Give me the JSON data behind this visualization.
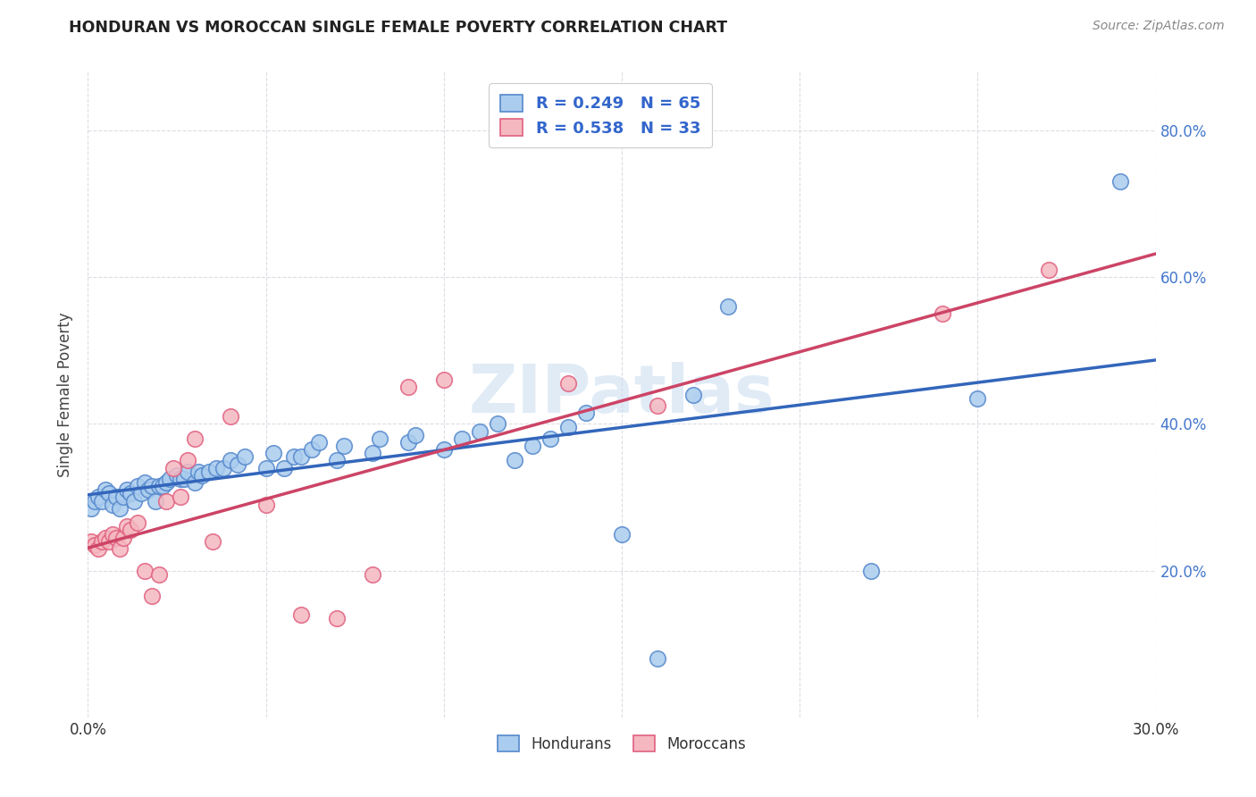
{
  "title": "HONDURAN VS MOROCCAN SINGLE FEMALE POVERTY CORRELATION CHART",
  "source": "Source: ZipAtlas.com",
  "ylabel": "Single Female Poverty",
  "x_min": 0.0,
  "x_max": 0.3,
  "y_min": 0.0,
  "y_max": 0.88,
  "x_ticks": [
    0.0,
    0.05,
    0.1,
    0.15,
    0.2,
    0.25,
    0.3
  ],
  "y_ticks": [
    0.2,
    0.4,
    0.6,
    0.8
  ],
  "blue_fill": "#aaccee",
  "blue_edge": "#5588cc",
  "pink_fill": "#f5b8c0",
  "pink_edge": "#e06080",
  "blue_line_color": "#3366bb",
  "pink_line_color": "#cc4466",
  "watermark": "ZIPatlas",
  "legend_label_blue": "Hondurans",
  "legend_label_pink": "Moroccans",
  "honduran_x": [
    0.001,
    0.002,
    0.003,
    0.004,
    0.005,
    0.006,
    0.007,
    0.008,
    0.009,
    0.01,
    0.011,
    0.012,
    0.013,
    0.014,
    0.015,
    0.016,
    0.017,
    0.018,
    0.019,
    0.02,
    0.021,
    0.022,
    0.023,
    0.025,
    0.026,
    0.027,
    0.028,
    0.03,
    0.031,
    0.032,
    0.034,
    0.036,
    0.038,
    0.04,
    0.042,
    0.044,
    0.05,
    0.052,
    0.055,
    0.058,
    0.06,
    0.063,
    0.065,
    0.07,
    0.072,
    0.08,
    0.082,
    0.09,
    0.092,
    0.1,
    0.105,
    0.11,
    0.115,
    0.12,
    0.125,
    0.13,
    0.135,
    0.14,
    0.15,
    0.16,
    0.17,
    0.18,
    0.22,
    0.25,
    0.29
  ],
  "honduran_y": [
    0.285,
    0.295,
    0.3,
    0.295,
    0.31,
    0.305,
    0.29,
    0.3,
    0.285,
    0.3,
    0.31,
    0.305,
    0.295,
    0.315,
    0.305,
    0.32,
    0.31,
    0.315,
    0.295,
    0.315,
    0.315,
    0.32,
    0.325,
    0.33,
    0.325,
    0.325,
    0.335,
    0.32,
    0.335,
    0.33,
    0.335,
    0.34,
    0.34,
    0.35,
    0.345,
    0.355,
    0.34,
    0.36,
    0.34,
    0.355,
    0.355,
    0.365,
    0.375,
    0.35,
    0.37,
    0.36,
    0.38,
    0.375,
    0.385,
    0.365,
    0.38,
    0.39,
    0.4,
    0.35,
    0.37,
    0.38,
    0.395,
    0.415,
    0.25,
    0.08,
    0.44,
    0.56,
    0.2,
    0.435,
    0.73
  ],
  "moroccan_x": [
    0.001,
    0.002,
    0.003,
    0.004,
    0.005,
    0.006,
    0.007,
    0.008,
    0.009,
    0.01,
    0.011,
    0.012,
    0.014,
    0.016,
    0.018,
    0.02,
    0.022,
    0.024,
    0.026,
    0.028,
    0.03,
    0.035,
    0.04,
    0.05,
    0.06,
    0.07,
    0.08,
    0.09,
    0.1,
    0.135,
    0.16,
    0.24,
    0.27
  ],
  "moroccan_y": [
    0.24,
    0.235,
    0.23,
    0.24,
    0.245,
    0.24,
    0.25,
    0.245,
    0.23,
    0.245,
    0.26,
    0.255,
    0.265,
    0.2,
    0.165,
    0.195,
    0.295,
    0.34,
    0.3,
    0.35,
    0.38,
    0.24,
    0.41,
    0.29,
    0.14,
    0.135,
    0.195,
    0.45,
    0.46,
    0.455,
    0.425,
    0.55,
    0.61
  ]
}
